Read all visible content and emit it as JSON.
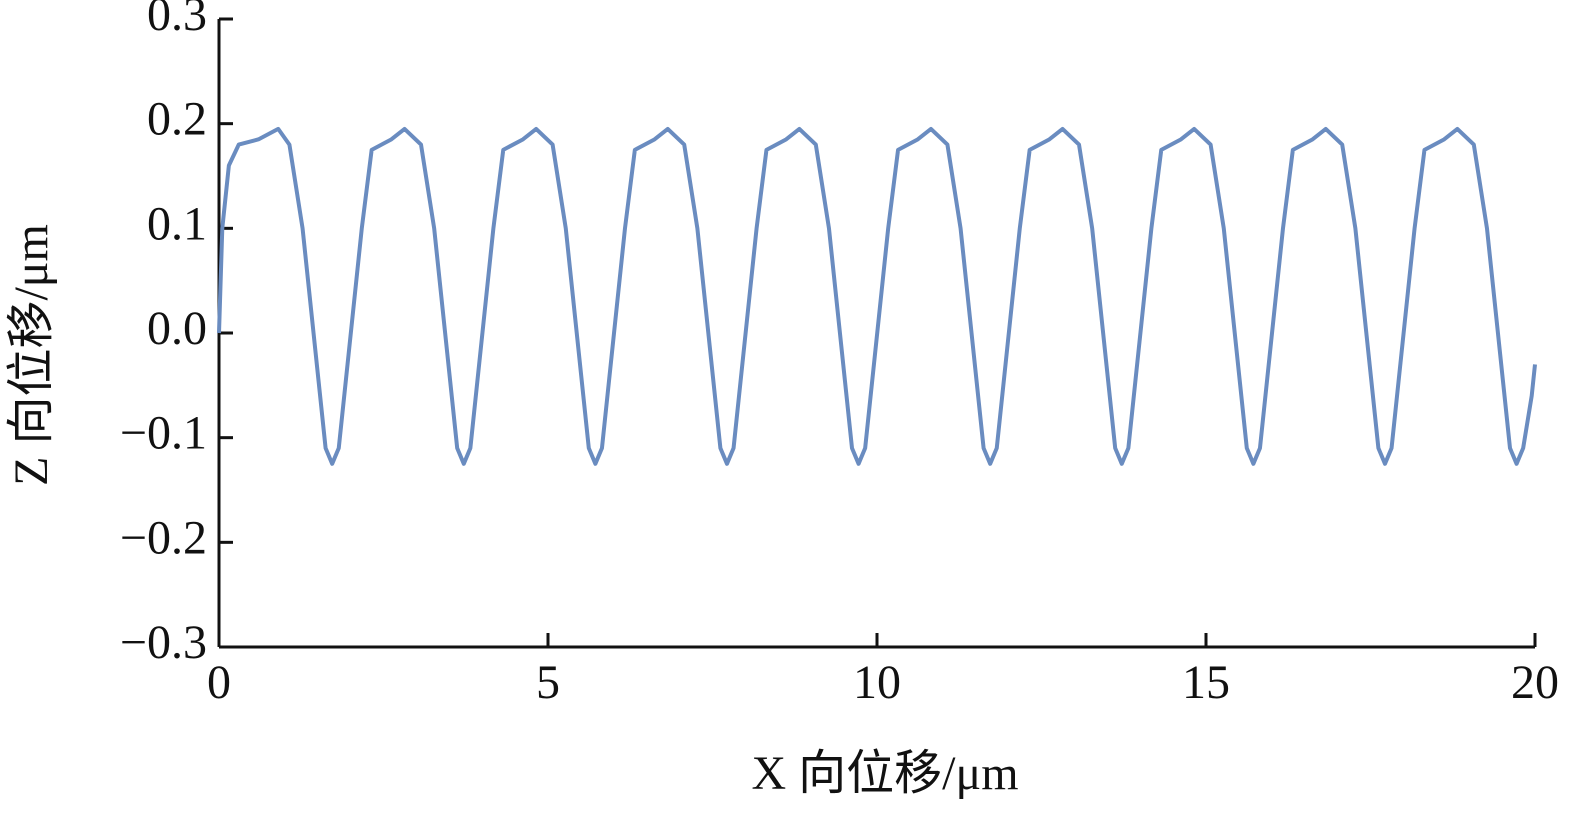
{
  "chart_data": {
    "type": "line",
    "xlabel": "X 向位移/μm",
    "ylabel": "Z 向位移/μm",
    "color": "#6a8cc0",
    "x": [
      0,
      0.05,
      0.15,
      0.3,
      0.6,
      0.9,
      1.07,
      1.27,
      1.47,
      1.62,
      1.72,
      1.82,
      1.97,
      2.17,
      2.32,
      2.62,
      2.82,
      3.07,
      3.27,
      3.47,
      3.62,
      3.72,
      3.82,
      3.97,
      4.17,
      4.32,
      4.62,
      4.82,
      5.07,
      5.27,
      5.47,
      5.62,
      5.72,
      5.82,
      5.97,
      6.17,
      6.32,
      6.62,
      6.82,
      7.07,
      7.27,
      7.47,
      7.62,
      7.72,
      7.82,
      7.97,
      8.17,
      8.32,
      8.62,
      8.82,
      9.07,
      9.27,
      9.47,
      9.62,
      9.72,
      9.82,
      9.97,
      10.17,
      10.32,
      10.62,
      10.82,
      11.07,
      11.27,
      11.47,
      11.62,
      11.72,
      11.82,
      11.97,
      12.17,
      12.32,
      12.62,
      12.82,
      13.07,
      13.27,
      13.47,
      13.62,
      13.72,
      13.82,
      13.97,
      14.17,
      14.32,
      14.62,
      14.82,
      15.07,
      15.27,
      15.47,
      15.62,
      15.72,
      15.82,
      15.97,
      16.17,
      16.32,
      16.62,
      16.82,
      17.07,
      17.27,
      17.47,
      17.62,
      17.72,
      17.82,
      17.97,
      18.17,
      18.32,
      18.62,
      18.82,
      19.07,
      19.27,
      19.47,
      19.62,
      19.72,
      19.82,
      19.95,
      20
    ],
    "values": [
      0,
      0.1,
      0.16,
      0.18,
      0.185,
      0.195,
      0.18,
      0.1,
      -0.02,
      -0.11,
      -0.125,
      -0.11,
      -0.02,
      0.1,
      0.175,
      0.185,
      0.195,
      0.18,
      0.1,
      -0.02,
      -0.11,
      -0.125,
      -0.11,
      -0.02,
      0.1,
      0.175,
      0.185,
      0.195,
      0.18,
      0.1,
      -0.02,
      -0.11,
      -0.125,
      -0.11,
      -0.02,
      0.1,
      0.175,
      0.185,
      0.195,
      0.18,
      0.1,
      -0.02,
      -0.11,
      -0.125,
      -0.11,
      -0.02,
      0.1,
      0.175,
      0.185,
      0.195,
      0.18,
      0.1,
      -0.02,
      -0.11,
      -0.125,
      -0.11,
      -0.02,
      0.1,
      0.175,
      0.185,
      0.195,
      0.18,
      0.1,
      -0.02,
      -0.11,
      -0.125,
      -0.11,
      -0.02,
      0.1,
      0.175,
      0.185,
      0.195,
      0.18,
      0.1,
      -0.02,
      -0.11,
      -0.125,
      -0.11,
      -0.02,
      0.1,
      0.175,
      0.185,
      0.195,
      0.18,
      0.1,
      -0.02,
      -0.11,
      -0.125,
      -0.11,
      -0.02,
      0.1,
      0.175,
      0.185,
      0.195,
      0.18,
      0.1,
      -0.02,
      -0.11,
      -0.125,
      -0.11,
      -0.02,
      0.1,
      0.175,
      0.185,
      0.195,
      0.18,
      0.1,
      -0.02,
      -0.11,
      -0.125,
      -0.11,
      -0.06,
      -0.03
    ],
    "xlim": [
      0,
      20
    ],
    "xticks": [
      0,
      5,
      10,
      15,
      20
    ],
    "ylim": [
      -0.3,
      0.3
    ],
    "yticks": [
      {
        "value": -0.3,
        "label": "−0.3"
      },
      {
        "value": -0.2,
        "label": "−0.2"
      },
      {
        "value": -0.1,
        "label": "−0.1"
      },
      {
        "value": 0,
        "label": "0.0"
      },
      0.1,
      0.2,
      0.3
    ]
  }
}
